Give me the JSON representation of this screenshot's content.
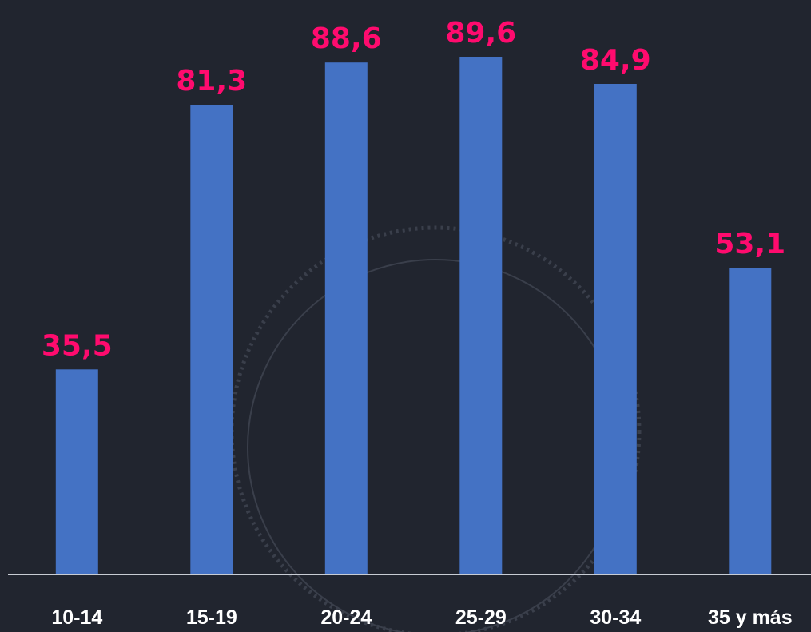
{
  "chart_data": {
    "type": "bar",
    "categories": [
      "10-14",
      "15-19",
      "20-24",
      "25-29",
      "30-34",
      "35 y más"
    ],
    "values": [
      35.5,
      81.3,
      88.6,
      89.6,
      84.9,
      53.1
    ],
    "value_labels": [
      "35,5",
      "81,3",
      "88,6",
      "89,6",
      "84,9",
      "53,1"
    ],
    "title": "",
    "xlabel": "",
    "ylabel": "",
    "ylim": [
      0,
      100
    ],
    "grid": false,
    "legend": "none"
  },
  "colors": {
    "background": "#21252f",
    "bar": "#4472c4",
    "value_label": "#ff0b6e",
    "category_label": "#ffffff",
    "axis": "#c8ccd4",
    "decor_circle": "#3a3f4b"
  }
}
